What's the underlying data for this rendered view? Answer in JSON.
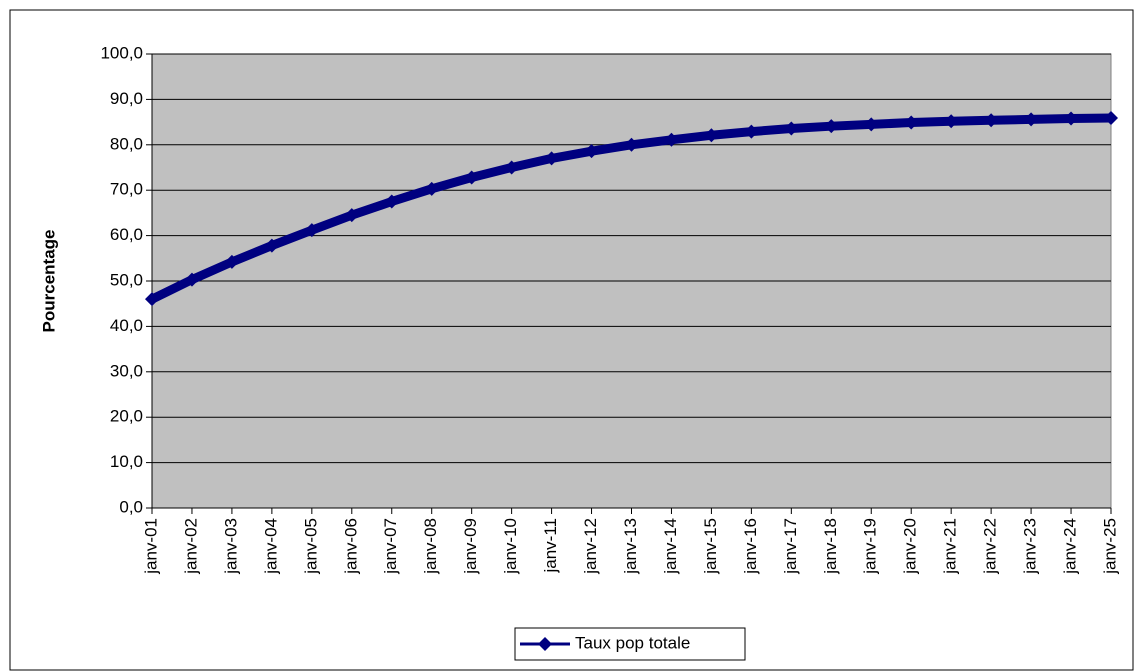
{
  "chart_data": {
    "type": "line",
    "y_label": "Pourcentage",
    "categories": [
      "janv-01",
      "janv-02",
      "janv-03",
      "janv-04",
      "janv-05",
      "janv-06",
      "janv-07",
      "janv-08",
      "janv-09",
      "janv-10",
      "janv-11",
      "janv-12",
      "janv-13",
      "janv-14",
      "janv-15",
      "janv-16",
      "janv-17",
      "janv-18",
      "janv-19",
      "janv-20",
      "janv-21",
      "janv-22",
      "janv-23",
      "janv-24",
      "janv-25"
    ],
    "series": [
      {
        "name": "Taux pop totale",
        "color": "#000080",
        "values": [
          46.0,
          50.3,
          54.2,
          57.8,
          61.2,
          64.5,
          67.5,
          70.3,
          72.8,
          75.0,
          77.0,
          78.6,
          80.0,
          81.1,
          82.1,
          82.9,
          83.6,
          84.1,
          84.5,
          84.9,
          85.2,
          85.4,
          85.6,
          85.8,
          85.9
        ]
      }
    ],
    "ylim": [
      0,
      100
    ],
    "yticks": [
      {
        "value": 0,
        "label": "0,0"
      },
      {
        "value": 10,
        "label": "10,0"
      },
      {
        "value": 20,
        "label": "20,0"
      },
      {
        "value": 30,
        "label": "30,0"
      },
      {
        "value": 40,
        "label": "40,0"
      },
      {
        "value": 50,
        "label": "50,0"
      },
      {
        "value": 60,
        "label": "60,0"
      },
      {
        "value": 70,
        "label": "70,0"
      },
      {
        "value": 80,
        "label": "80,0"
      },
      {
        "value": 90,
        "label": "90,0"
      },
      {
        "value": {
          "value": 100,
          "label": "100,0"
        }
      }
    ],
    "grid": true,
    "legend": "bottom"
  }
}
